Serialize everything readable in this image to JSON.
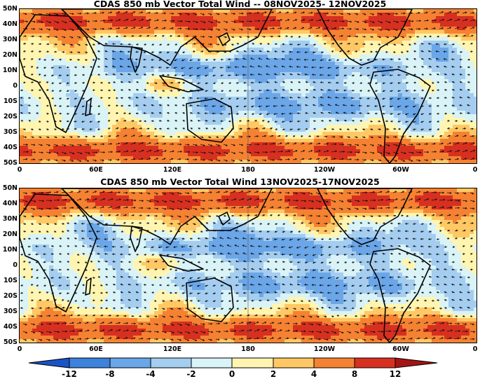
{
  "panels": [
    {
      "title": "CDAS 850 mb Vector Total Wind -- 08NOV2025- 12NOV2025",
      "y_labels": [
        "50N",
        "40N",
        "30N",
        "20N",
        "10N",
        "0",
        "10S",
        "20S",
        "30S",
        "40S",
        "50S"
      ],
      "x_labels": [
        "0",
        "60E",
        "120E",
        "180",
        "120W",
        "60W",
        "0"
      ]
    },
    {
      "title": "CDAS 850 mb Vector Total Wind 13NOV2025-17NOV2025",
      "y_labels": [
        "50N",
        "40N",
        "30N",
        "20N",
        "10N",
        "0",
        "10S",
        "20S",
        "30S",
        "40S",
        "50S"
      ],
      "x_labels": [
        "0",
        "60E",
        "120E",
        "180",
        "120W",
        "60W",
        "0"
      ]
    }
  ],
  "colorbar": {
    "labels": [
      "-12",
      "-8",
      "-4",
      "-2",
      "0",
      "2",
      "4",
      "8",
      "12"
    ],
    "colors": [
      "#1a53c8",
      "#3d82dc",
      "#6aa6e8",
      "#a4cdf0",
      "#d9f3f7",
      "#fff5b0",
      "#ffc864",
      "#f58232",
      "#d73020",
      "#a51414"
    ]
  }
}
